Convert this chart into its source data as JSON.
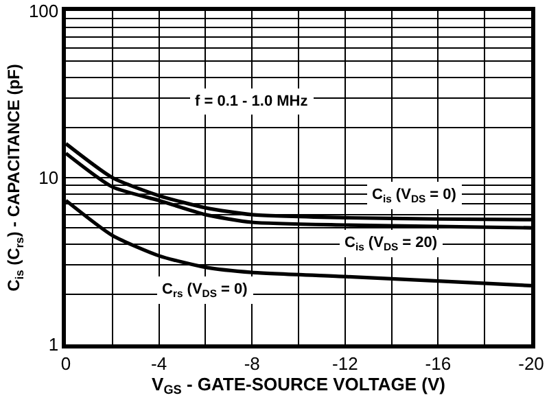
{
  "chart_data": {
    "type": "line",
    "xlabel": "V$_{GS}$ - GATE-SOURCE VOLTAGE (V)",
    "ylabel": "C$_{is}$ (C$_{rs}$) - CAPACITANCE (pF)",
    "x": [
      0,
      -2,
      -4,
      -6,
      -8,
      -12,
      -16,
      -20
    ],
    "series": [
      {
        "name": "C$_{is}$ (V$_{DS}$ = 0)",
        "color": "#000000",
        "values": [
          16,
          10,
          7.8,
          6.6,
          6.0,
          5.75,
          5.65,
          5.6
        ]
      },
      {
        "name": "C$_{is}$ (V$_{DS}$ = 20)",
        "color": "#000000",
        "values": [
          14,
          8.8,
          7.3,
          6.0,
          5.4,
          5.2,
          5.1,
          5.0
        ]
      },
      {
        "name": "C$_{rs}$ (V$_{DS}$ = 0)",
        "color": "#000000",
        "values": [
          7.3,
          4.5,
          3.4,
          2.9,
          2.7,
          2.55,
          2.4,
          2.25
        ]
      }
    ],
    "log": "y",
    "xlim": [
      0,
      -20
    ],
    "ylim": [
      1,
      100
    ],
    "xticks": [
      0,
      {
        "value": -2,
        "label": null
      },
      -4,
      {
        "value": -6,
        "label": null
      },
      -8,
      {
        "value": -10,
        "label": null
      },
      -12,
      {
        "value": -14,
        "label": null
      },
      -16,
      {
        "value": -18,
        "label": null
      },
      -20
    ],
    "yticks": [
      1,
      {
        "value": 2,
        "label": null
      },
      {
        "value": 3,
        "label": null
      },
      {
        "value": 4,
        "label": null
      },
      {
        "value": 5,
        "label": null
      },
      {
        "value": 6,
        "label": null
      },
      {
        "value": 7,
        "label": null
      },
      {
        "value": 8,
        "label": null
      },
      {
        "value": 9,
        "label": null
      },
      10,
      {
        "value": 20,
        "label": null
      },
      {
        "value": 30,
        "label": null
      },
      {
        "value": 40,
        "label": null
      },
      {
        "value": 50,
        "label": null
      },
      {
        "value": 60,
        "label": null
      },
      {
        "value": 70,
        "label": null
      },
      {
        "value": 80,
        "label": null
      },
      {
        "value": 90,
        "label": null
      },
      100
    ],
    "grid": true,
    "marker": "none",
    "line_style": "solid",
    "annotations": [
      "f = 0.1 - 1.0 MHz"
    ]
  }
}
